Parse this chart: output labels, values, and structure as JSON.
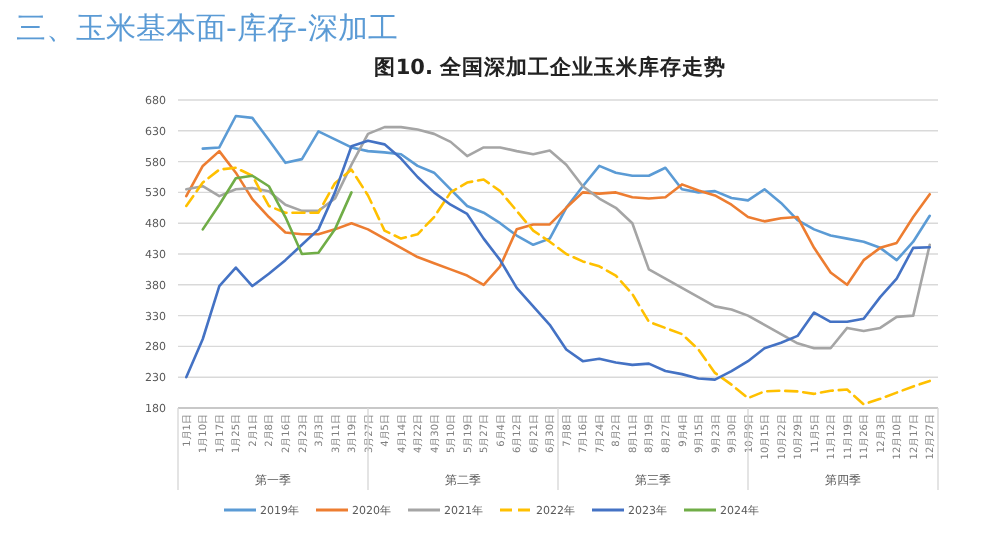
{
  "chart_data": {
    "type": "line",
    "subtitle": "三、玉米基本面-库存-深加工",
    "title": "图10. 全国深加工企业玉米库存走势",
    "categories": [
      "1月1日",
      "1月10日",
      "1月17日",
      "1月25日",
      "2月1日",
      "2月8日",
      "2月16日",
      "2月23日",
      "3月3日",
      "3月11日",
      "3月19日",
      "3月27日",
      "4月5日",
      "4月14日",
      "4月22日",
      "4月30日",
      "5月10日",
      "5月19日",
      "5月27日",
      "6月4日",
      "6月12日",
      "6月21日",
      "6月30日",
      "7月8日",
      "7月16日",
      "7月24日",
      "8月2日",
      "8月11日",
      "8月19日",
      "8月27日",
      "9月4日",
      "9月15日",
      "9月23日",
      "9月30日",
      "10月9日",
      "10月15日",
      "10月22日",
      "10月29日",
      "11月5日",
      "11月12日",
      "11月19日",
      "11月26日",
      "12月3日",
      "12月10日",
      "12月17日",
      "12月27日"
    ],
    "annotations": [
      "第一季",
      "第二季",
      "第三季",
      "第四季"
    ],
    "ylim": [
      180,
      680
    ],
    "yticks": [
      180,
      230,
      280,
      330,
      380,
      430,
      480,
      530,
      580,
      630,
      680
    ],
    "grid": "y",
    "legend": "bottom",
    "marker": "none",
    "series": [
      {
        "name": "2019年",
        "color": "#5b9bd5",
        "line_style": "solid",
        "values": [
          null,
          601,
          603,
          654,
          651,
          615,
          578,
          584,
          629,
          616,
          603,
          597,
          595,
          592,
          573,
          562,
          535,
          508,
          497,
          480,
          460,
          445,
          455,
          505,
          540,
          573,
          562,
          557,
          557,
          570,
          535,
          530,
          532,
          521,
          517,
          535,
          513,
          485,
          470,
          460,
          455,
          450,
          440,
          420,
          450,
          492
        ]
      },
      {
        "name": "2020年",
        "color": "#ed7d31",
        "line_style": "solid",
        "values": [
          524,
          573,
          597,
          562,
          519,
          490,
          465,
          462,
          462,
          470,
          480,
          470,
          455,
          440,
          425,
          415,
          405,
          395,
          380,
          410,
          470,
          478,
          478,
          505,
          530,
          528,
          530,
          522,
          520,
          522,
          543,
          533,
          525,
          510,
          490,
          483,
          488,
          490,
          440,
          400,
          380,
          420,
          440,
          448,
          490,
          527
        ]
      },
      {
        "name": "2021年",
        "color": "#a5a5a5",
        "line_style": "solid",
        "values": [
          535,
          540,
          524,
          535,
          537,
          532,
          510,
          500,
          500,
          520,
          575,
          625,
          636,
          636,
          632,
          625,
          612,
          589,
          603,
          603,
          597,
          592,
          598,
          575,
          540,
          520,
          505,
          480,
          405,
          390,
          375,
          360,
          345,
          340,
          330,
          315,
          300,
          285,
          277,
          277,
          310,
          305,
          310,
          328,
          330,
          445
        ]
      },
      {
        "name": "2022年",
        "color": "#ffc000",
        "line_style": "dashed",
        "values": [
          508,
          546,
          567,
          570,
          557,
          508,
          497,
          497,
          497,
          545,
          567,
          525,
          468,
          455,
          462,
          490,
          530,
          546,
          551,
          532,
          500,
          468,
          450,
          430,
          418,
          410,
          395,
          365,
          320,
          310,
          300,
          275,
          237,
          218,
          196,
          207,
          208,
          207,
          203,
          208,
          210,
          186,
          195,
          205,
          215,
          224
        ]
      },
      {
        "name": "2023年",
        "color": "#4472c4",
        "line_style": "solid",
        "values": [
          230,
          292,
          378,
          408,
          378,
          398,
          420,
          445,
          470,
          530,
          605,
          614,
          608,
          585,
          555,
          530,
          510,
          495,
          455,
          420,
          375,
          345,
          315,
          275,
          256,
          260,
          254,
          250,
          252,
          240,
          235,
          228,
          226,
          240,
          256,
          277,
          286,
          297,
          335,
          320,
          320,
          325,
          360,
          390,
          440,
          441
        ]
      },
      {
        "name": "2024年",
        "color": "#70ad47",
        "line_style": "solid",
        "values": [
          null,
          470,
          510,
          553,
          557,
          540,
          490,
          430,
          432,
          470,
          530,
          null,
          null,
          null,
          null,
          null,
          null,
          null,
          null,
          null,
          null,
          null,
          null,
          null,
          null,
          null,
          null,
          null,
          null,
          null,
          null,
          null,
          null,
          null,
          null,
          null,
          null,
          null,
          null,
          null,
          null,
          null,
          null,
          null,
          null,
          null
        ]
      }
    ]
  }
}
